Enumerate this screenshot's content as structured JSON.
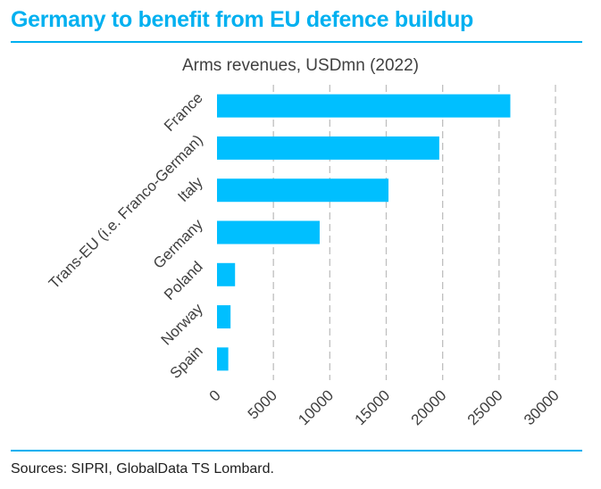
{
  "headline": "Germany to benefit from EU defence buildup",
  "source": "Sources: SIPRI, GlobalData TS Lombard.",
  "colors": {
    "accent": "#00b0f0",
    "bar": "#00bfff",
    "grid": "#bfbfbf"
  },
  "chart_data": {
    "type": "bar",
    "orientation": "horizontal",
    "title": "Arms revenues, USDmn (2022)",
    "categories": [
      "France",
      "Trans-EU (i.e. Franco-German)",
      "Italy",
      "Germany",
      "Poland",
      "Norway",
      "Spain"
    ],
    "values": [
      26000,
      19700,
      15200,
      9100,
      1600,
      1200,
      1000
    ],
    "xlim": [
      0,
      30000
    ],
    "xticks": [
      0,
      5000,
      10000,
      15000,
      20000,
      25000,
      30000
    ],
    "grid": "vertical dashed",
    "legend": "none"
  }
}
